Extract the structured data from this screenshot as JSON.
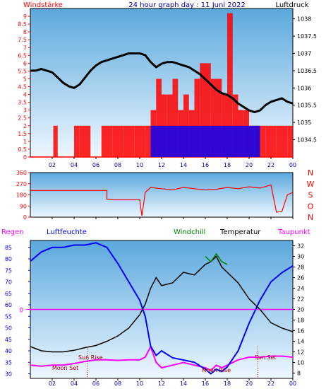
{
  "header": {
    "left_label": "Windstärke",
    "title": "24 hour graph day : 11 Juni 2022",
    "right_label": "Luftdruck"
  },
  "colors": {
    "plot_top": "#5aa8dd",
    "plot_bottom": "#eef7ff",
    "wind": "#ff0000",
    "gust": "#0000ff",
    "pressure": "#000000",
    "temperature": "#000000",
    "humidity": "#0000ff",
    "dewpoint": "#ff00ff",
    "windchill": "#008000",
    "rain": "#ff00ff",
    "events": "#aa0000",
    "hour_labels": "#0000aa"
  },
  "chart_data": [
    {
      "type": "line",
      "panel": "wind-pressure",
      "title": "24 hour graph day : 11 Juni 2022",
      "x_ticks": [
        "02",
        "04",
        "06",
        "08",
        "10",
        "12",
        "14",
        "16",
        "18",
        "20",
        "22",
        "00"
      ],
      "y_left": {
        "label": "Windstärke",
        "ticks": [
          "0",
          "0.5",
          "1",
          "1.5",
          "2",
          "2.5",
          "3",
          "3.5",
          "4",
          "4.5",
          "5",
          "5.5",
          "6",
          "6.5",
          "7",
          "7.5",
          "8",
          "8.5",
          "9"
        ],
        "range": [
          0,
          9.5
        ]
      },
      "y_right": {
        "label": "Luftdruck",
        "ticks": [
          "1034.5",
          "1035",
          "1035.5",
          "1036",
          "1036.5",
          "1037",
          "1037.5",
          "1038"
        ],
        "range": [
          1034.0,
          1038.3
        ]
      },
      "series": [
        {
          "name": "Luftdruck",
          "axis": "right",
          "x": [
            0,
            0.5,
            1,
            1.5,
            2,
            2.5,
            3,
            3.5,
            4,
            4.5,
            5,
            5.5,
            6,
            6.5,
            7,
            7.5,
            8,
            8.5,
            9,
            9.5,
            10,
            10.5,
            11,
            11.5,
            12,
            12.5,
            13,
            13.5,
            14,
            14.5,
            15,
            15.5,
            16,
            16.5,
            17,
            17.5,
            18,
            18.5,
            19,
            19.5,
            20,
            20.5,
            21,
            21.5,
            22,
            22.5,
            23,
            23.5,
            24
          ],
          "values": [
            1036.5,
            1036.5,
            1036.55,
            1036.5,
            1036.45,
            1036.3,
            1036.15,
            1036.05,
            1036.0,
            1036.1,
            1036.3,
            1036.5,
            1036.65,
            1036.75,
            1036.8,
            1036.85,
            1036.9,
            1036.95,
            1037.0,
            1037.0,
            1037.0,
            1036.95,
            1036.75,
            1036.6,
            1036.7,
            1036.75,
            1036.75,
            1036.7,
            1036.65,
            1036.6,
            1036.5,
            1036.4,
            1036.25,
            1036.1,
            1035.95,
            1035.85,
            1035.8,
            1035.7,
            1035.55,
            1035.45,
            1035.35,
            1035.3,
            1035.35,
            1035.5,
            1035.6,
            1035.65,
            1035.7,
            1035.6,
            1035.55
          ]
        },
        {
          "name": "Windstärke",
          "axis": "left",
          "x": [
            0,
            1,
            2,
            2.1,
            2.5,
            3,
            3.5,
            4,
            4.5,
            5,
            5.5,
            6,
            6.5,
            7,
            7.5,
            8,
            8.5,
            9,
            9.5,
            10,
            10.5,
            11,
            11.5,
            12,
            12.5,
            13,
            13.5,
            14,
            14.5,
            15,
            15.5,
            16,
            16.5,
            17,
            17.5,
            18,
            18.5,
            19,
            19.5,
            20,
            20.5,
            21,
            21.5,
            22,
            22.5,
            23,
            23.5,
            24
          ],
          "values": [
            0,
            0,
            0,
            2,
            0,
            0,
            0,
            2,
            2,
            2,
            0,
            0,
            2,
            2,
            2,
            2,
            2,
            2,
            2,
            2,
            2,
            3,
            5,
            4,
            4,
            5,
            3,
            4,
            3,
            5,
            6,
            6,
            5,
            5,
            4,
            9.2,
            4,
            3,
            3,
            2,
            2,
            2,
            2,
            2,
            2,
            2,
            2,
            2
          ]
        },
        {
          "name": "Böen",
          "axis": "left",
          "x": [
            11,
            12,
            13,
            14,
            15,
            16,
            17,
            18,
            19,
            20,
            21
          ],
          "values": [
            2,
            2,
            2,
            2,
            2,
            2,
            2,
            2,
            2,
            2,
            2
          ]
        }
      ]
    },
    {
      "type": "line",
      "panel": "wind-direction",
      "y_left": {
        "ticks": [
          "0",
          "90",
          "180",
          "270",
          "360"
        ],
        "range": [
          0,
          360
        ]
      },
      "y_right": {
        "labels": [
          "N",
          "W",
          "S",
          "O",
          "N"
        ]
      },
      "series": [
        {
          "name": "Windrichtung",
          "x": [
            0,
            4,
            6,
            7,
            7,
            7.5,
            8,
            9,
            10,
            10.2,
            10.5,
            11,
            12,
            13,
            14,
            15,
            16,
            17,
            18,
            19,
            20,
            21,
            22,
            22.5,
            23,
            23.5,
            24
          ],
          "values": [
            215,
            215,
            215,
            215,
            145,
            140,
            140,
            140,
            140,
            10,
            200,
            240,
            230,
            220,
            240,
            230,
            220,
            225,
            240,
            230,
            245,
            235,
            260,
            40,
            45,
            180,
            200
          ]
        }
      ]
    },
    {
      "type": "line",
      "panel": "temperature-humidity",
      "legend": [
        "Regen",
        "Luftfeuchte",
        "Windchill",
        "Temperatur",
        "Taupunkt"
      ],
      "y_left": {
        "ticks": [
          "30",
          "35",
          "40",
          "45",
          "50",
          "55",
          "60",
          "65",
          "70",
          "75",
          "80",
          "85"
        ],
        "range": [
          28,
          88
        ]
      },
      "y_right": {
        "ticks": [
          "8",
          "10",
          "12",
          "14",
          "16",
          "18",
          "20",
          "22",
          "24",
          "26",
          "28",
          "30",
          "32"
        ],
        "range": [
          7,
          33
        ]
      },
      "rain_marker": "0",
      "events": [
        "Moon Set",
        "Sun Rise",
        "Moon Rise",
        "Sun Set"
      ],
      "series": [
        {
          "name": "Temperatur",
          "axis": "right",
          "x": [
            0,
            1,
            2,
            3,
            4,
            5,
            6,
            7,
            8,
            9,
            10,
            10.5,
            11,
            11.5,
            12,
            13,
            14,
            15,
            16,
            16.5,
            17,
            17.5,
            18,
            19,
            20,
            21,
            22,
            23,
            24
          ],
          "values": [
            13,
            12.2,
            12.0,
            12.0,
            12.3,
            12.8,
            13.2,
            14,
            15,
            16.5,
            19,
            21,
            24,
            26,
            24.5,
            25,
            27,
            26.5,
            28.5,
            29,
            30,
            28,
            27,
            25,
            22,
            20,
            17.5,
            16.5,
            15.8
          ]
        },
        {
          "name": "Luftfeuchte",
          "axis": "left",
          "x": [
            0,
            1,
            2,
            3,
            4,
            5,
            6,
            7,
            8,
            9,
            10,
            10.5,
            11,
            11.5,
            12,
            13,
            14,
            15,
            16,
            16.5,
            17,
            17.5,
            18,
            19,
            20,
            21,
            22,
            23,
            24
          ],
          "values": [
            79,
            83,
            85,
            85,
            86,
            86,
            87,
            85,
            78,
            70,
            62,
            55,
            42,
            38,
            40,
            37,
            36,
            35,
            32,
            30,
            32,
            31,
            33,
            40,
            52,
            62,
            70,
            74,
            77
          ]
        },
        {
          "name": "Taupunkt",
          "axis": "right",
          "x": [
            0,
            1,
            2,
            3,
            4,
            5,
            6,
            7,
            8,
            9,
            10,
            10.5,
            11,
            11.5,
            12,
            13,
            14,
            15,
            16,
            16.5,
            17,
            17.5,
            18,
            19,
            20,
            21,
            22,
            23,
            24
          ],
          "values": [
            9.5,
            9.3,
            9.5,
            9.5,
            9.8,
            10.2,
            10.5,
            10.5,
            10.4,
            10.5,
            10.5,
            11,
            13,
            10,
            9,
            9.5,
            10,
            9.5,
            9,
            8.5,
            9.5,
            9,
            9.5,
            10.5,
            11,
            11,
            11.2,
            11.2,
            11.0
          ]
        },
        {
          "name": "Windchill",
          "axis": "right",
          "x": [
            16,
            16.5,
            17,
            17.5,
            18
          ],
          "values": [
            30,
            29,
            30.5,
            29,
            28.5
          ]
        }
      ]
    }
  ]
}
